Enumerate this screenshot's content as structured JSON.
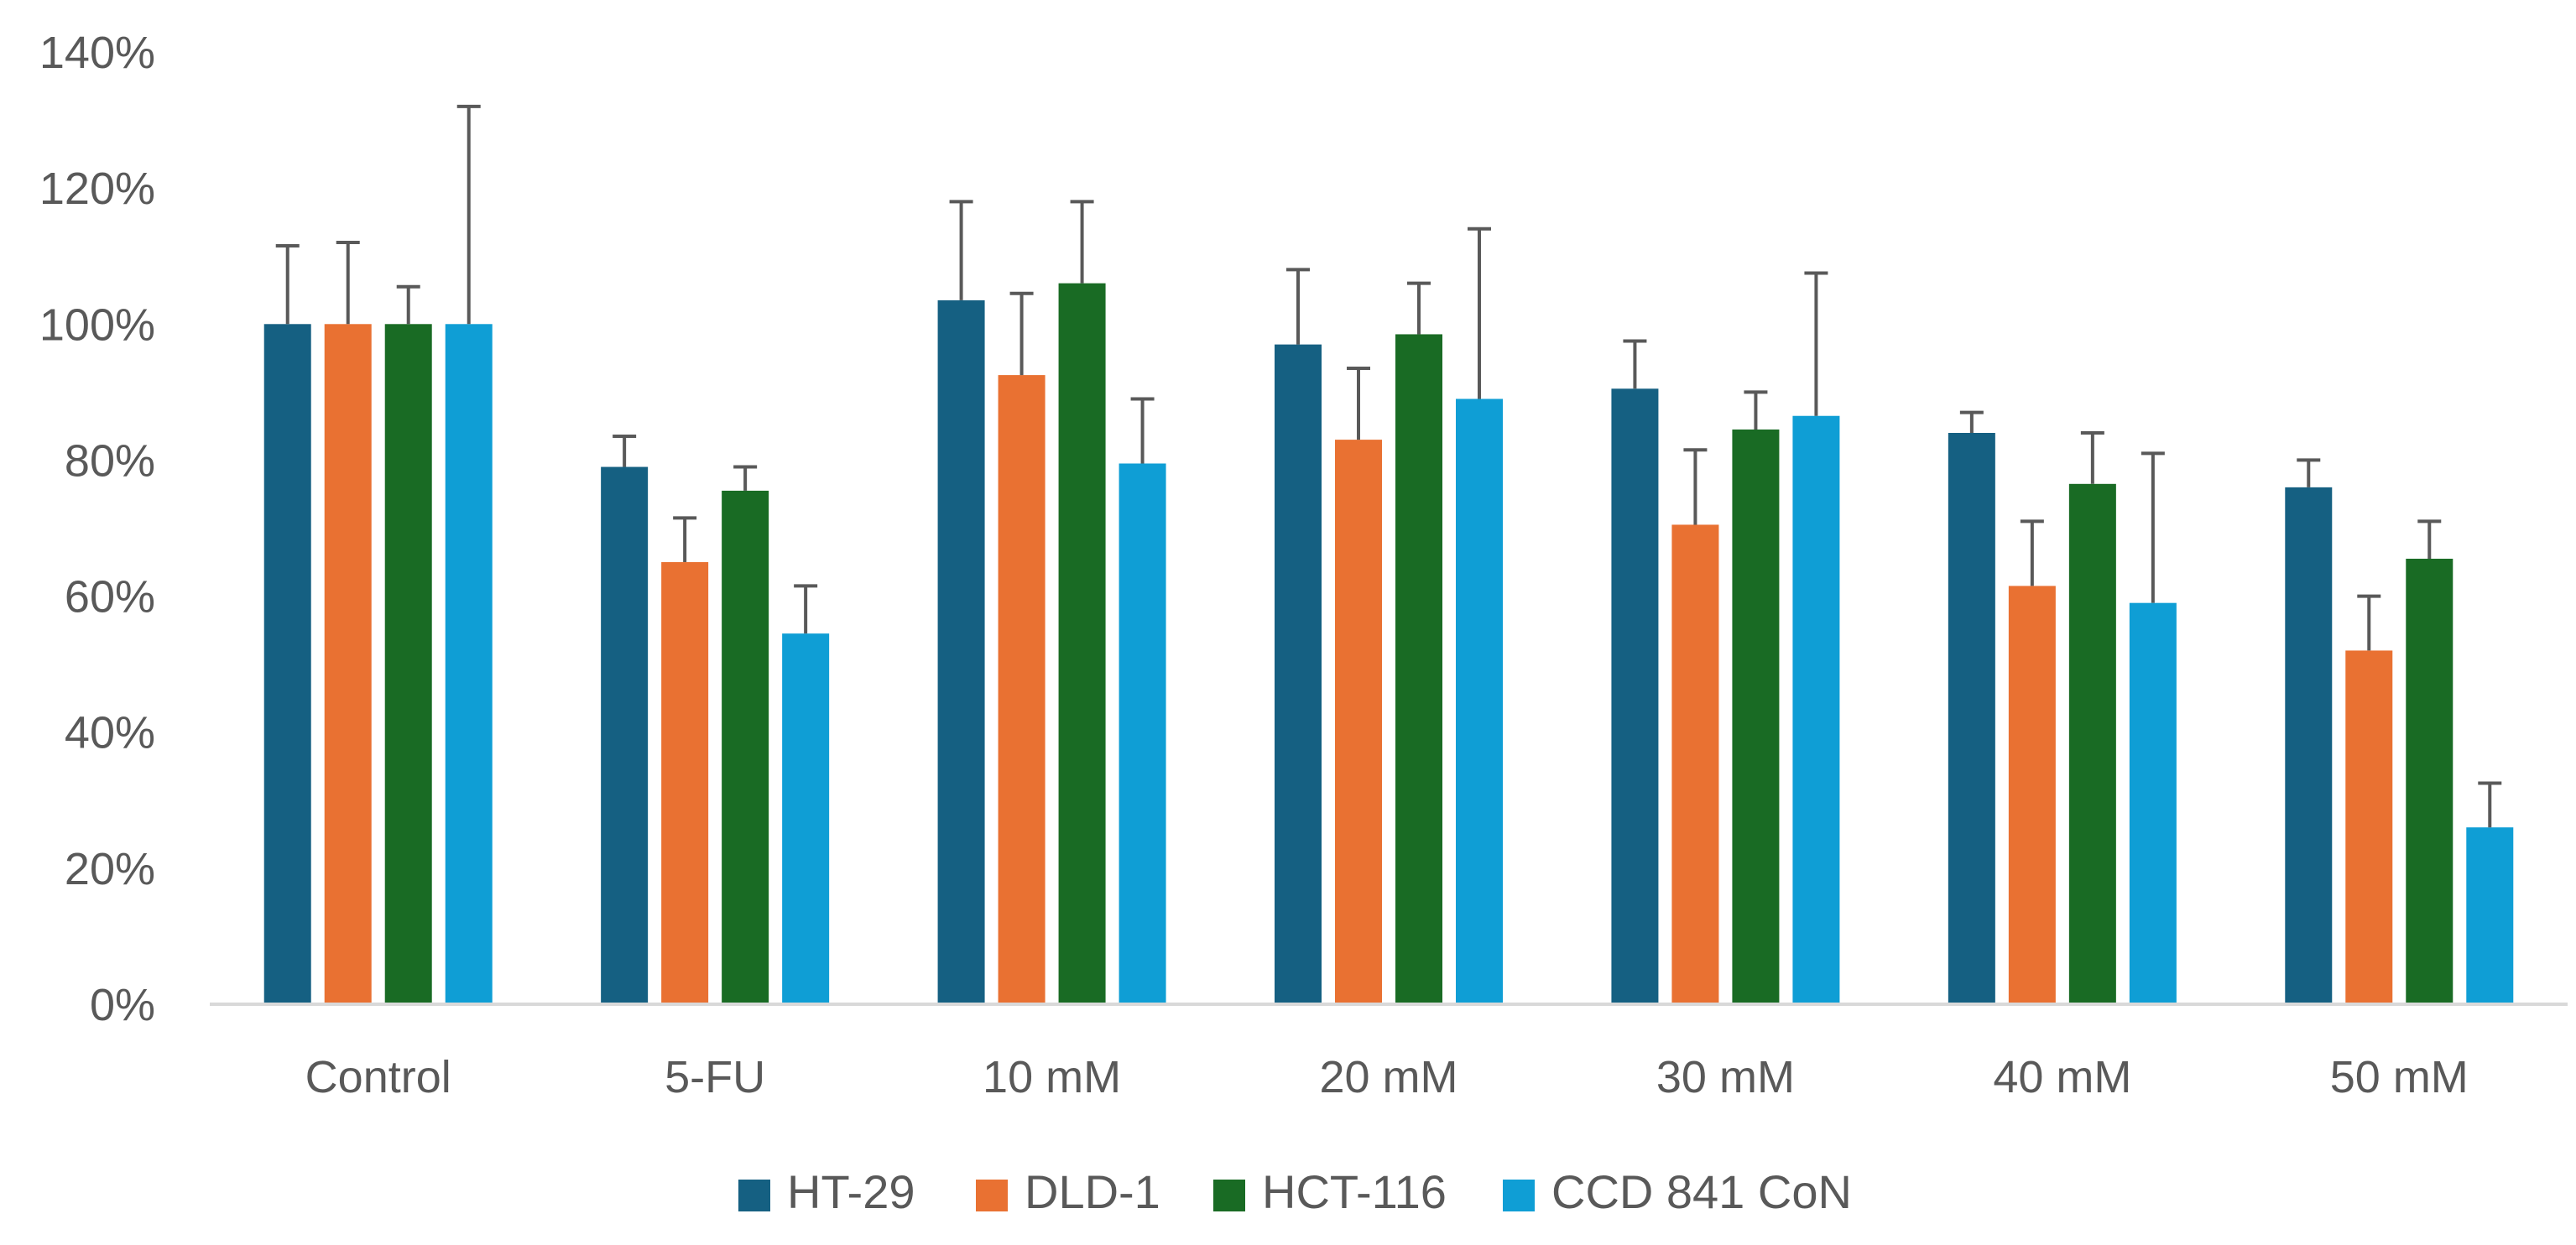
{
  "chart_data": {
    "type": "bar",
    "title": "",
    "xlabel": "",
    "ylabel": "",
    "ylim": [
      0,
      140
    ],
    "y_ticks": [
      0,
      20,
      40,
      60,
      80,
      100,
      120,
      140
    ],
    "y_tick_labels": [
      "0%",
      "20%",
      "40%",
      "60%",
      "80%",
      "100%",
      "120%",
      "140%"
    ],
    "grid": false,
    "legend_position": "bottom",
    "categories": [
      "Control",
      "5-FU",
      "10 mM",
      "20 mM",
      "30 mM",
      "40 mM",
      "50 mM"
    ],
    "series": [
      {
        "name": "HT-29",
        "color": "#156082",
        "values": [
          100,
          79,
          103.5,
          97,
          90.5,
          84,
          76
        ],
        "error": [
          11.5,
          4.5,
          14.5,
          11,
          7,
          3,
          4
        ]
      },
      {
        "name": "DLD-1",
        "color": "#E97132",
        "values": [
          100,
          65,
          92.5,
          83,
          70.5,
          61.5,
          52
        ],
        "error": [
          12,
          6.5,
          12,
          10.5,
          11,
          9.5,
          8
        ]
      },
      {
        "name": "HCT-116",
        "color": "#196B24",
        "values": [
          100,
          75.5,
          106,
          98.5,
          84.5,
          76.5,
          65.5
        ],
        "error": [
          5.5,
          3.5,
          12,
          7.5,
          5.5,
          7.5,
          5.5
        ]
      },
      {
        "name": "CCD 841 CoN",
        "color": "#0F9ED5",
        "values": [
          100,
          54.5,
          79.5,
          89,
          86.5,
          59,
          26
        ],
        "error": [
          32,
          7,
          9.5,
          25,
          21,
          22,
          6.5
        ]
      }
    ]
  },
  "colors": {
    "axis": "#D9D9D9",
    "error_bar": "#595959",
    "text": "#595959"
  }
}
